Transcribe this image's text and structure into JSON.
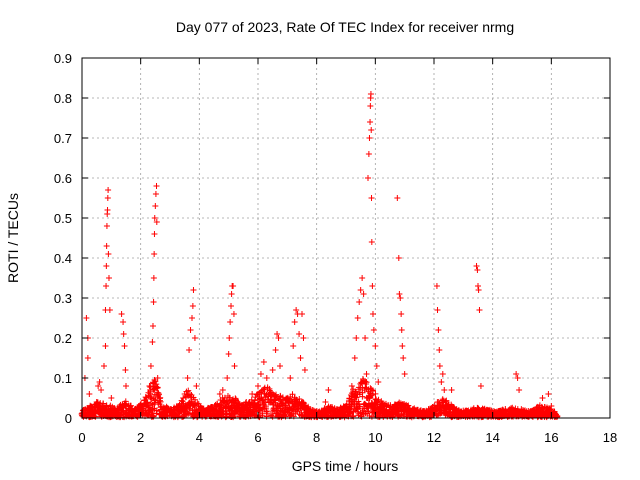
{
  "chart_data": {
    "type": "scatter",
    "title": "Day 077 of 2023, Rate Of TEC Index for receiver nrmg",
    "xlabel": "GPS time / hours",
    "ylabel": "ROTI / TECUs",
    "xlim": [
      0,
      18
    ],
    "ylim": [
      0,
      0.9
    ],
    "xticks": [
      "0",
      "2",
      "4",
      "6",
      "8",
      "10",
      "12",
      "14",
      "16",
      "18"
    ],
    "yticks": [
      "0",
      "0.1",
      "0.2",
      "0.3",
      "0.4",
      "0.5",
      "0.6",
      "0.7",
      "0.8",
      "0.9"
    ],
    "grid": true,
    "marker": "+",
    "color": "#ff0000",
    "series": [
      {
        "name": "ROTI",
        "points": [
          [
            0.05,
            0.02
          ],
          [
            0.1,
            0.1
          ],
          [
            0.15,
            0.25
          ],
          [
            0.2,
            0.2
          ],
          [
            0.2,
            0.15
          ],
          [
            0.25,
            0.06
          ],
          [
            0.5,
            0.04
          ],
          [
            0.55,
            0.08
          ],
          [
            0.6,
            0.09
          ],
          [
            0.65,
            0.07
          ],
          [
            0.75,
            0.13
          ],
          [
            0.8,
            0.18
          ],
          [
            0.8,
            0.27
          ],
          [
            0.82,
            0.33
          ],
          [
            0.83,
            0.38
          ],
          [
            0.84,
            0.43
          ],
          [
            0.85,
            0.48
          ],
          [
            0.86,
            0.51
          ],
          [
            0.87,
            0.52
          ],
          [
            0.88,
            0.55
          ],
          [
            0.89,
            0.57
          ],
          [
            0.9,
            0.41
          ],
          [
            0.92,
            0.35
          ],
          [
            0.95,
            0.27
          ],
          [
            1.0,
            0.05
          ],
          [
            1.35,
            0.26
          ],
          [
            1.4,
            0.24
          ],
          [
            1.42,
            0.21
          ],
          [
            1.45,
            0.18
          ],
          [
            1.48,
            0.12
          ],
          [
            1.5,
            0.08
          ],
          [
            2.2,
            0.05
          ],
          [
            2.3,
            0.08
          ],
          [
            2.35,
            0.13
          ],
          [
            2.4,
            0.19
          ],
          [
            2.42,
            0.23
          ],
          [
            2.44,
            0.29
          ],
          [
            2.45,
            0.35
          ],
          [
            2.46,
            0.41
          ],
          [
            2.47,
            0.46
          ],
          [
            2.48,
            0.5
          ],
          [
            2.5,
            0.53
          ],
          [
            2.52,
            0.56
          ],
          [
            2.54,
            0.58
          ],
          [
            2.55,
            0.49
          ],
          [
            2.58,
            0.1
          ],
          [
            3.5,
            0.06
          ],
          [
            3.6,
            0.1
          ],
          [
            3.65,
            0.17
          ],
          [
            3.7,
            0.22
          ],
          [
            3.75,
            0.25
          ],
          [
            3.78,
            0.28
          ],
          [
            3.8,
            0.32
          ],
          [
            3.85,
            0.2
          ],
          [
            3.9,
            0.08
          ],
          [
            4.6,
            0.03
          ],
          [
            4.7,
            0.06
          ],
          [
            4.8,
            0.07
          ],
          [
            4.95,
            0.1
          ],
          [
            5.0,
            0.16
          ],
          [
            5.02,
            0.2
          ],
          [
            5.05,
            0.24
          ],
          [
            5.08,
            0.28
          ],
          [
            5.1,
            0.31
          ],
          [
            5.12,
            0.33
          ],
          [
            5.15,
            0.33
          ],
          [
            5.18,
            0.26
          ],
          [
            5.2,
            0.13
          ],
          [
            5.6,
            0.04
          ],
          [
            5.8,
            0.06
          ],
          [
            6.0,
            0.08
          ],
          [
            6.1,
            0.11
          ],
          [
            6.2,
            0.14
          ],
          [
            6.3,
            0.1
          ],
          [
            6.5,
            0.12
          ],
          [
            6.6,
            0.17
          ],
          [
            6.65,
            0.21
          ],
          [
            6.7,
            0.2
          ],
          [
            6.75,
            0.13
          ],
          [
            7.1,
            0.1
          ],
          [
            7.2,
            0.18
          ],
          [
            7.25,
            0.24
          ],
          [
            7.3,
            0.27
          ],
          [
            7.35,
            0.26
          ],
          [
            7.4,
            0.21
          ],
          [
            7.45,
            0.15
          ],
          [
            7.5,
            0.26
          ],
          [
            7.55,
            0.2
          ],
          [
            7.6,
            0.12
          ],
          [
            8.3,
            0.04
          ],
          [
            8.4,
            0.07
          ],
          [
            9.2,
            0.08
          ],
          [
            9.3,
            0.15
          ],
          [
            9.35,
            0.2
          ],
          [
            9.4,
            0.25
          ],
          [
            9.45,
            0.29
          ],
          [
            9.5,
            0.32
          ],
          [
            9.55,
            0.35
          ],
          [
            9.6,
            0.31
          ],
          [
            9.65,
            0.2
          ],
          [
            9.7,
            0.11
          ],
          [
            9.75,
            0.6
          ],
          [
            9.78,
            0.66
          ],
          [
            9.8,
            0.7
          ],
          [
            9.82,
            0.74
          ],
          [
            9.83,
            0.78
          ],
          [
            9.84,
            0.8
          ],
          [
            9.85,
            0.81
          ],
          [
            9.86,
            0.72
          ],
          [
            9.87,
            0.55
          ],
          [
            9.88,
            0.44
          ],
          [
            9.9,
            0.33
          ],
          [
            9.92,
            0.26
          ],
          [
            9.95,
            0.22
          ],
          [
            10.0,
            0.18
          ],
          [
            10.05,
            0.13
          ],
          [
            10.1,
            0.09
          ],
          [
            10.75,
            0.55
          ],
          [
            10.8,
            0.4
          ],
          [
            10.82,
            0.31
          ],
          [
            10.85,
            0.3
          ],
          [
            10.88,
            0.26
          ],
          [
            10.9,
            0.22
          ],
          [
            10.92,
            0.18
          ],
          [
            10.95,
            0.15
          ],
          [
            11.0,
            0.11
          ],
          [
            12.1,
            0.33
          ],
          [
            12.12,
            0.27
          ],
          [
            12.15,
            0.22
          ],
          [
            12.18,
            0.17
          ],
          [
            12.2,
            0.13
          ],
          [
            12.25,
            0.09
          ],
          [
            12.3,
            0.11
          ],
          [
            12.35,
            0.07
          ],
          [
            12.6,
            0.07
          ],
          [
            13.45,
            0.38
          ],
          [
            13.48,
            0.37
          ],
          [
            13.5,
            0.33
          ],
          [
            13.52,
            0.32
          ],
          [
            13.55,
            0.27
          ],
          [
            13.6,
            0.08
          ],
          [
            14.8,
            0.11
          ],
          [
            14.85,
            0.1
          ],
          [
            14.9,
            0.07
          ],
          [
            15.7,
            0.05
          ],
          [
            15.9,
            0.06
          ],
          [
            16.0,
            0.03
          ]
        ],
        "envelope_hours": [
          [
            0.0,
            0.015
          ],
          [
            0.3,
            0.03
          ],
          [
            0.6,
            0.04
          ],
          [
            0.9,
            0.03
          ],
          [
            1.2,
            0.025
          ],
          [
            1.5,
            0.04
          ],
          [
            1.8,
            0.02
          ],
          [
            2.1,
            0.04
          ],
          [
            2.3,
            0.07
          ],
          [
            2.5,
            0.1
          ],
          [
            2.7,
            0.04
          ],
          [
            3.0,
            0.02
          ],
          [
            3.3,
            0.03
          ],
          [
            3.6,
            0.07
          ],
          [
            3.9,
            0.04
          ],
          [
            4.2,
            0.02
          ],
          [
            4.5,
            0.03
          ],
          [
            4.8,
            0.05
          ],
          [
            5.1,
            0.06
          ],
          [
            5.4,
            0.03
          ],
          [
            5.7,
            0.04
          ],
          [
            6.0,
            0.06
          ],
          [
            6.3,
            0.08
          ],
          [
            6.6,
            0.06
          ],
          [
            6.9,
            0.05
          ],
          [
            7.2,
            0.06
          ],
          [
            7.5,
            0.04
          ],
          [
            7.8,
            0.02
          ],
          [
            8.1,
            0.015
          ],
          [
            8.4,
            0.03
          ],
          [
            8.7,
            0.02
          ],
          [
            9.0,
            0.03
          ],
          [
            9.3,
            0.08
          ],
          [
            9.6,
            0.1
          ],
          [
            9.9,
            0.07
          ],
          [
            10.2,
            0.04
          ],
          [
            10.5,
            0.03
          ],
          [
            10.8,
            0.04
          ],
          [
            11.1,
            0.03
          ],
          [
            11.4,
            0.02
          ],
          [
            11.7,
            0.015
          ],
          [
            12.0,
            0.03
          ],
          [
            12.3,
            0.05
          ],
          [
            12.6,
            0.03
          ],
          [
            12.9,
            0.015
          ],
          [
            13.2,
            0.02
          ],
          [
            13.5,
            0.025
          ],
          [
            13.8,
            0.02
          ],
          [
            14.1,
            0.015
          ],
          [
            14.4,
            0.02
          ],
          [
            14.7,
            0.025
          ],
          [
            15.0,
            0.02
          ],
          [
            15.3,
            0.015
          ],
          [
            15.6,
            0.03
          ],
          [
            15.9,
            0.025
          ],
          [
            16.2,
            0.01
          ]
        ]
      }
    ]
  }
}
